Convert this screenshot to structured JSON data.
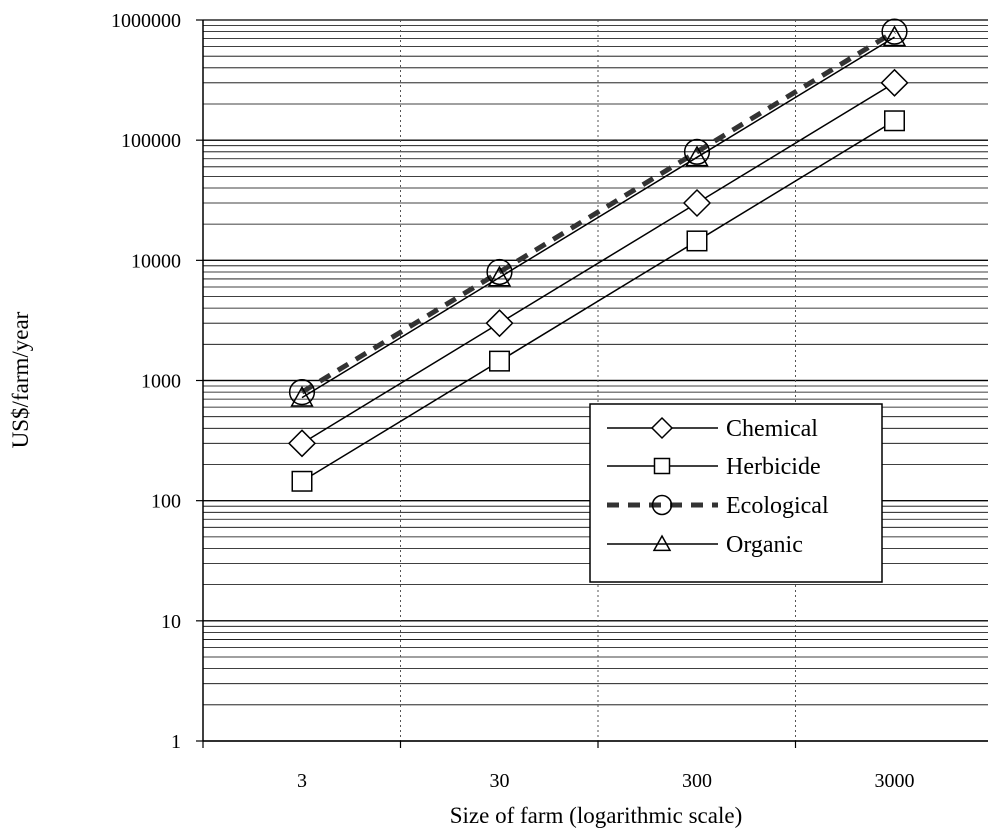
{
  "chart_data": {
    "type": "line",
    "xlabel": "Size of farm (logarithmic scale)",
    "ylabel": "US$/farm/year",
    "x": [
      3,
      30,
      300,
      3000
    ],
    "x_tick_labels": [
      "3",
      "30",
      "300",
      "3000"
    ],
    "y_scale": "log",
    "ylim": [
      1,
      1000000
    ],
    "y_tick_labels": [
      "1",
      "10",
      "100",
      "1000",
      "10000",
      "100000",
      "1000000"
    ],
    "grid": {
      "horizontal": "solid-minor-and-major",
      "vertical": "dotted"
    },
    "legend_position": "lower-right",
    "series": [
      {
        "name": "Chemical",
        "marker": "diamond",
        "line": "solid",
        "values": [
          300,
          3000,
          30000,
          300000
        ]
      },
      {
        "name": "Herbicide",
        "marker": "square",
        "line": "solid",
        "values": [
          145,
          1450,
          14500,
          145000
        ]
      },
      {
        "name": "Ecological",
        "marker": "circle",
        "line": "dashed",
        "values": [
          800,
          8000,
          80000,
          800000
        ]
      },
      {
        "name": "Organic",
        "marker": "triangle",
        "line": "solid",
        "values": [
          720,
          7200,
          72000,
          720000
        ]
      }
    ],
    "colors": {
      "line": "#000000",
      "marker_fill": "#ffffff",
      "dashed_line": "#333333"
    }
  }
}
